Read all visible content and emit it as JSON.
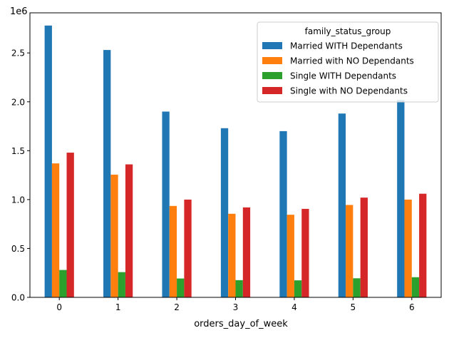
{
  "chart_data": {
    "type": "bar",
    "x_label": "orders_day_of_week",
    "y_offset_label": "1e6",
    "categories": [
      "0",
      "1",
      "2",
      "3",
      "4",
      "5",
      "6"
    ],
    "y_ticks": [
      {
        "value": 0,
        "label": "0.0"
      },
      {
        "value": 500000,
        "label": "0.5"
      },
      {
        "value": 1000000,
        "label": "1.0"
      },
      {
        "value": 1500000,
        "label": "1.5"
      },
      {
        "value": 2000000,
        "label": "2.0"
      },
      {
        "value": 2500000,
        "label": "2.5"
      }
    ],
    "ylim": [
      0,
      2910000
    ],
    "legend": {
      "title": "family_status_group",
      "placement": "top-right"
    },
    "series": [
      {
        "name": "Married WITH Dependants",
        "color": "#1f77b4",
        "values": [
          2780000,
          2530000,
          1900000,
          1730000,
          1700000,
          1880000,
          2020000
        ]
      },
      {
        "name": "Married with NO Dependants",
        "color": "#ff7f0e",
        "values": [
          1370000,
          1255000,
          935000,
          855000,
          845000,
          945000,
          1000000
        ]
      },
      {
        "name": "Single WITH Dependants",
        "color": "#2ca02c",
        "values": [
          280000,
          258000,
          193000,
          176000,
          174000,
          195000,
          206000
        ]
      },
      {
        "name": "Single with NO Dependants",
        "color": "#d62728",
        "values": [
          1480000,
          1360000,
          1000000,
          920000,
          905000,
          1020000,
          1060000
        ]
      }
    ]
  }
}
